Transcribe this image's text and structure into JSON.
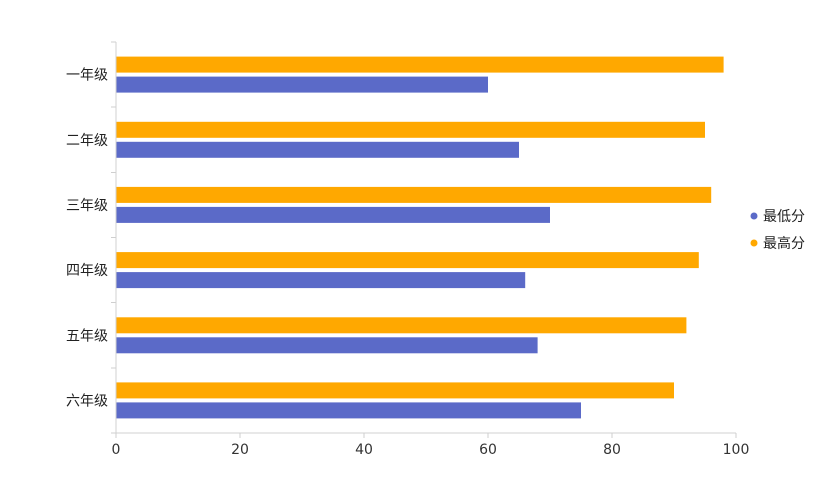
{
  "chart_data": {
    "type": "bar",
    "orientation": "horizontal",
    "categories": [
      "一年级",
      "二年级",
      "三年级",
      "四年级",
      "五年级",
      "六年级"
    ],
    "series": [
      {
        "name": "最低分",
        "color": "#5b6ac8",
        "values": [
          60,
          65,
          70,
          66,
          68,
          75
        ]
      },
      {
        "name": "最高分",
        "color": "#ffa800",
        "values": [
          98,
          95,
          96,
          94,
          92,
          90
        ]
      }
    ],
    "xlim": [
      0,
      100
    ],
    "xticks": [
      0,
      20,
      40,
      60,
      80,
      100
    ],
    "xlabel": "",
    "ylabel": "",
    "title": "",
    "grid": false,
    "legend_position": "right"
  }
}
